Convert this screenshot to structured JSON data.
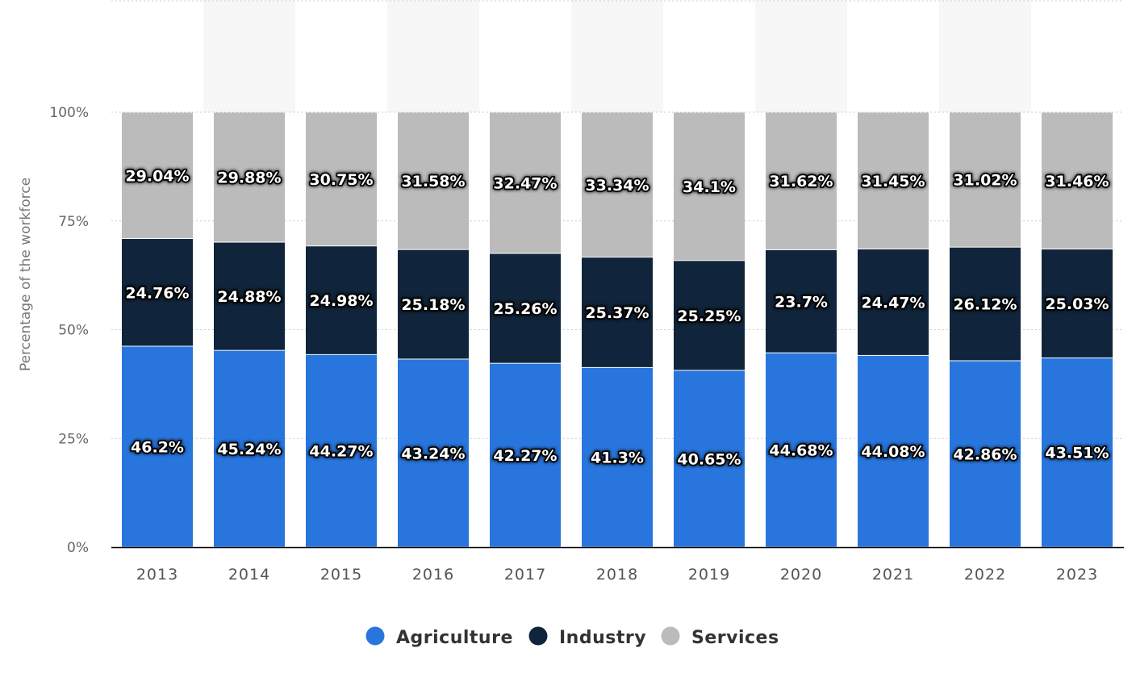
{
  "chart_data": {
    "type": "bar",
    "stacked": true,
    "title": "",
    "xlabel": "",
    "ylabel": "Percentage of the workforce",
    "ylim": [
      0,
      100
    ],
    "yticks": [
      "0%",
      "25%",
      "50%",
      "75%",
      "100%"
    ],
    "grid": true,
    "legend_position": "bottom",
    "categories": [
      "2013",
      "2014",
      "2015",
      "2016",
      "2017",
      "2018",
      "2019",
      "2020",
      "2021",
      "2022",
      "2023"
    ],
    "series": [
      {
        "name": "Agriculture",
        "color": "#2876dd",
        "values": [
          46.2,
          45.24,
          44.27,
          43.24,
          42.27,
          41.3,
          40.65,
          44.68,
          44.08,
          42.86,
          43.51
        ]
      },
      {
        "name": "Industry",
        "color": "#10253b",
        "values": [
          24.76,
          24.88,
          24.98,
          25.18,
          25.26,
          25.37,
          25.25,
          23.7,
          24.47,
          26.12,
          25.03
        ]
      },
      {
        "name": "Services",
        "color": "#bbbbbb",
        "values": [
          29.04,
          29.88,
          30.75,
          31.58,
          32.47,
          33.34,
          34.1,
          31.62,
          31.45,
          31.02,
          31.46
        ]
      }
    ]
  }
}
